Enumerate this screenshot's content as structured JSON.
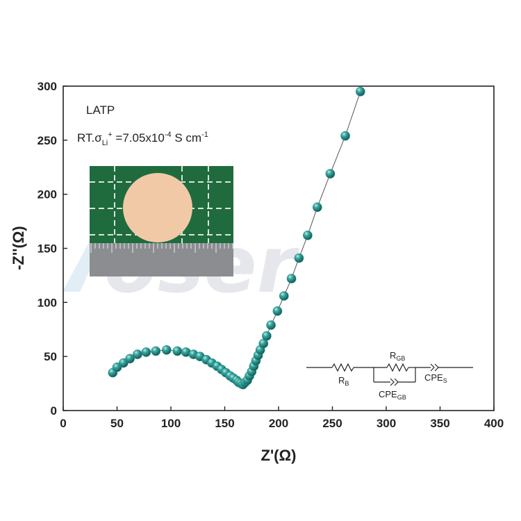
{
  "chart_data": {
    "type": "scatter",
    "xlabel": "Z'(Ω)",
    "ylabel": "-Z''(Ω)",
    "xlim": [
      0,
      400
    ],
    "ylim": [
      0,
      300
    ],
    "xticks": [
      "0",
      "50",
      "100",
      "150",
      "200",
      "250",
      "300",
      "350",
      "400"
    ],
    "yticks": [
      "0",
      "50",
      "100",
      "150",
      "200",
      "250",
      "300"
    ],
    "grid": false,
    "fit_line": true,
    "marker_color": "#2a8f8a",
    "series": [
      {
        "x": [
          46,
          50,
          56,
          62,
          69,
          77,
          86,
          96,
          106,
          114,
          121,
          127,
          133,
          138,
          143,
          147,
          151,
          155,
          158,
          161,
          163,
          165,
          167,
          169,
          171,
          173,
          175,
          177,
          179,
          181,
          183,
          186,
          189,
          193,
          199,
          205,
          212,
          219,
          227,
          236,
          248,
          262,
          276
        ],
        "y": [
          35,
          40,
          44,
          48,
          52,
          54,
          55,
          56,
          55,
          54,
          52,
          50,
          47,
          44,
          41,
          38,
          35,
          32,
          30,
          28,
          26,
          25,
          24,
          26,
          28,
          32,
          36,
          41,
          46,
          51,
          56,
          62,
          69,
          79,
          92,
          106,
          122,
          141,
          162,
          188,
          219,
          254,
          295
        ]
      }
    ],
    "annotations": {
      "sample": "LATP",
      "conductivity_prefix": "RT.σ",
      "conductivity_sub": "Li",
      "conductivity_sup": "+",
      "conductivity_value": " =7.05x10",
      "conductivity_exp": "-4",
      "conductivity_unit": " S cm",
      "conductivity_unit_exp": "-1"
    },
    "circuit": {
      "rb": "R",
      "rb_sub": "B",
      "rgb": "R",
      "rgb_sub": "GB",
      "cpegb": "CPE",
      "cpegb_sub": "GB",
      "cpes": "CPE",
      "cpes_sub": "S"
    }
  },
  "watermark": "oser",
  "photo": {
    "pellet_color": "#f2c9a6",
    "mat_color": "#1f6b3e"
  }
}
